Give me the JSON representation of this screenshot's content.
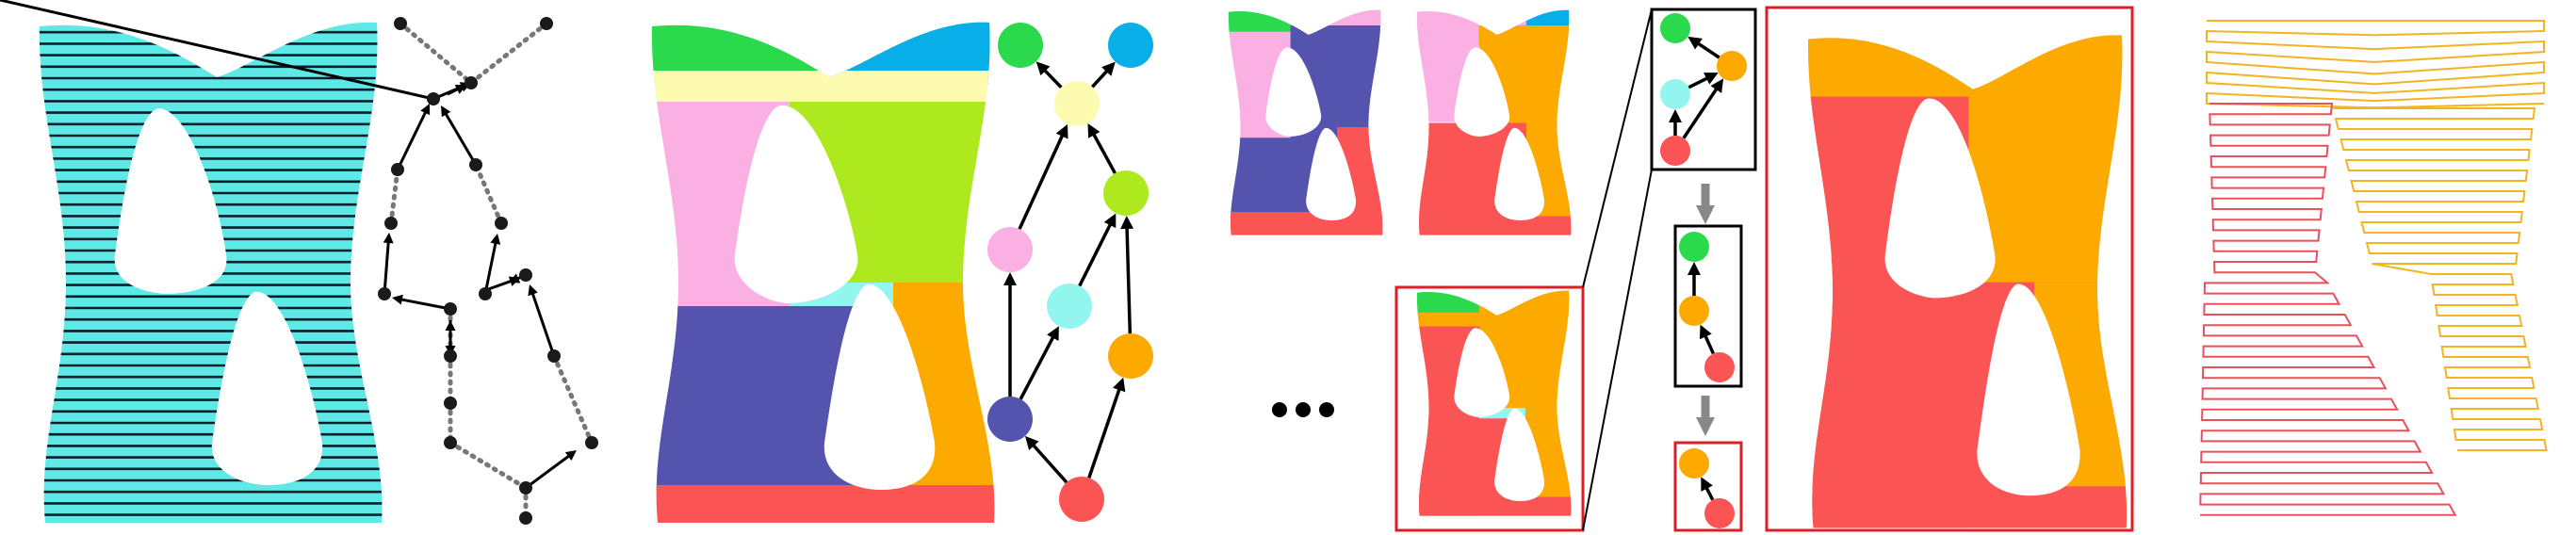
{
  "figure": {
    "panels": [
      {
        "id": "hatched-slicing",
        "description_key": "panel-1"
      },
      {
        "id": "slice-graph"
      },
      {
        "id": "colored-decomposition"
      },
      {
        "id": "region-graph"
      },
      {
        "id": "merge-sequence"
      },
      {
        "id": "merged-result"
      },
      {
        "id": "toolpath-output"
      }
    ],
    "ellipsis": "..."
  },
  "colors": {
    "hatch_fill": "#5ee9e6",
    "hatch_line": "#0a1f2a",
    "green": "#2bd94d",
    "blue": "#08aee8",
    "yellow": "#fcfbb0",
    "pink": "#fbb0e4",
    "lime": "#aee81e",
    "cyan": "#93f6ee",
    "purple": "#5454ae",
    "orange": "#fcaa00",
    "red": "#fb5454",
    "box_red": "#dd1f27",
    "arrow_gray": "#888888",
    "path_orange": "#f3b422",
    "path_red": "#e8505b"
  }
}
